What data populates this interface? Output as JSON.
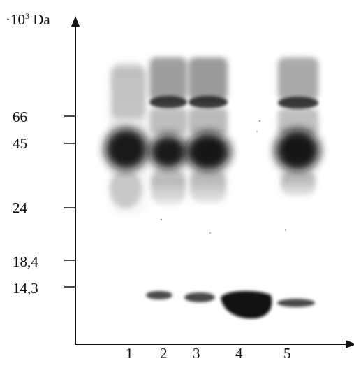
{
  "figure": {
    "y_axis_unit": {
      "prefix": "·10",
      "exponent": "3",
      "suffix": " Da"
    },
    "marker_labels": [
      "66",
      "45",
      "24",
      "18,4",
      "14,3"
    ],
    "lane_labels": [
      "1",
      "2",
      "3",
      "4",
      "5"
    ]
  }
}
